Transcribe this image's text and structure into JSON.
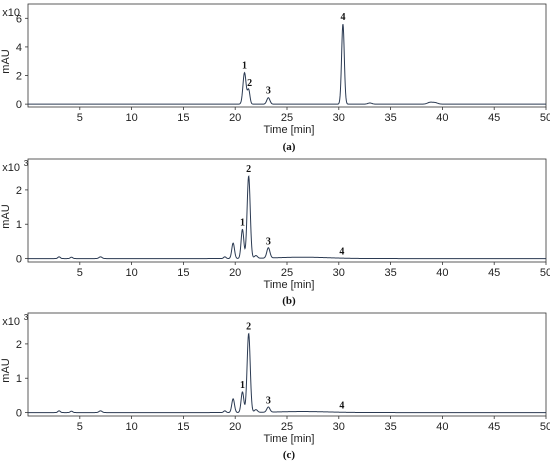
{
  "chart_data": [
    {
      "type": "line",
      "panel_label": "(a)",
      "ylabel": "mAU",
      "multiplier": "x10",
      "multiplier_exp": "",
      "xlabel": "Time [min]",
      "xlim": [
        0,
        50
      ],
      "ylim": [
        -0.2,
        7
      ],
      "x_ticks": [
        5,
        10,
        15,
        20,
        25,
        30,
        35,
        40,
        45,
        50
      ],
      "y_ticks": [
        0,
        2,
        4,
        6
      ],
      "peaks": [
        {
          "t": 20.9,
          "h": 2.2,
          "w": 0.15,
          "label": "1"
        },
        {
          "t": 21.3,
          "h": 1.0,
          "w": 0.12,
          "label": "2"
        },
        {
          "t": 23.2,
          "h": 0.45,
          "w": 0.15,
          "label": "3"
        },
        {
          "t": 30.4,
          "h": 5.6,
          "w": 0.13,
          "label": "4"
        },
        {
          "t": 33.0,
          "h": 0.08,
          "w": 0.2,
          "label": ""
        },
        {
          "t": 38.8,
          "h": 0.12,
          "w": 0.25,
          "label": ""
        },
        {
          "t": 39.3,
          "h": 0.1,
          "w": 0.25,
          "label": ""
        }
      ]
    },
    {
      "type": "line",
      "panel_label": "(b)",
      "ylabel": "mAU",
      "multiplier": "x10",
      "multiplier_exp": "3",
      "xlabel": "Time [min]",
      "xlim": [
        0,
        50
      ],
      "ylim": [
        -0.1,
        2.9
      ],
      "x_ticks": [
        5,
        10,
        15,
        20,
        25,
        30,
        35,
        40,
        45,
        50
      ],
      "y_ticks": [
        0,
        1,
        2
      ],
      "peaks": [
        {
          "t": 3.0,
          "h": 0.05,
          "w": 0.12,
          "label": ""
        },
        {
          "t": 4.2,
          "h": 0.04,
          "w": 0.12,
          "label": ""
        },
        {
          "t": 7.0,
          "h": 0.05,
          "w": 0.15,
          "label": ""
        },
        {
          "t": 19.0,
          "h": 0.05,
          "w": 0.12,
          "label": ""
        },
        {
          "t": 19.8,
          "h": 0.45,
          "w": 0.13,
          "label": ""
        },
        {
          "t": 20.7,
          "h": 0.85,
          "w": 0.13,
          "label": "1"
        },
        {
          "t": 21.3,
          "h": 2.4,
          "w": 0.15,
          "label": "2"
        },
        {
          "t": 22.0,
          "h": 0.08,
          "w": 0.15,
          "label": ""
        },
        {
          "t": 23.2,
          "h": 0.3,
          "w": 0.15,
          "label": "3"
        },
        {
          "t": 26.5,
          "h": 0.04,
          "w": 2.5,
          "label": ""
        },
        {
          "t": 30.3,
          "h": 0.0,
          "w": 0.1,
          "label": "4"
        }
      ]
    },
    {
      "type": "line",
      "panel_label": "(c)",
      "ylabel": "mAU",
      "multiplier": "x10",
      "multiplier_exp": "3",
      "xlabel": "Time [min]",
      "xlim": [
        0,
        50
      ],
      "ylim": [
        -0.1,
        2.9
      ],
      "x_ticks": [
        5,
        10,
        15,
        20,
        25,
        30,
        35,
        40,
        45,
        50
      ],
      "y_ticks": [
        0,
        1,
        2
      ],
      "peaks": [
        {
          "t": 3.0,
          "h": 0.05,
          "w": 0.12,
          "label": ""
        },
        {
          "t": 4.2,
          "h": 0.04,
          "w": 0.12,
          "label": ""
        },
        {
          "t": 7.0,
          "h": 0.05,
          "w": 0.15,
          "label": ""
        },
        {
          "t": 19.0,
          "h": 0.05,
          "w": 0.12,
          "label": ""
        },
        {
          "t": 19.8,
          "h": 0.4,
          "w": 0.13,
          "label": ""
        },
        {
          "t": 20.7,
          "h": 0.6,
          "w": 0.13,
          "label": "1"
        },
        {
          "t": 21.3,
          "h": 2.3,
          "w": 0.15,
          "label": "2"
        },
        {
          "t": 22.0,
          "h": 0.08,
          "w": 0.15,
          "label": ""
        },
        {
          "t": 23.2,
          "h": 0.15,
          "w": 0.15,
          "label": "3"
        },
        {
          "t": 26.5,
          "h": 0.03,
          "w": 2.5,
          "label": ""
        },
        {
          "t": 30.3,
          "h": 0.0,
          "w": 0.1,
          "label": "4"
        }
      ]
    }
  ]
}
